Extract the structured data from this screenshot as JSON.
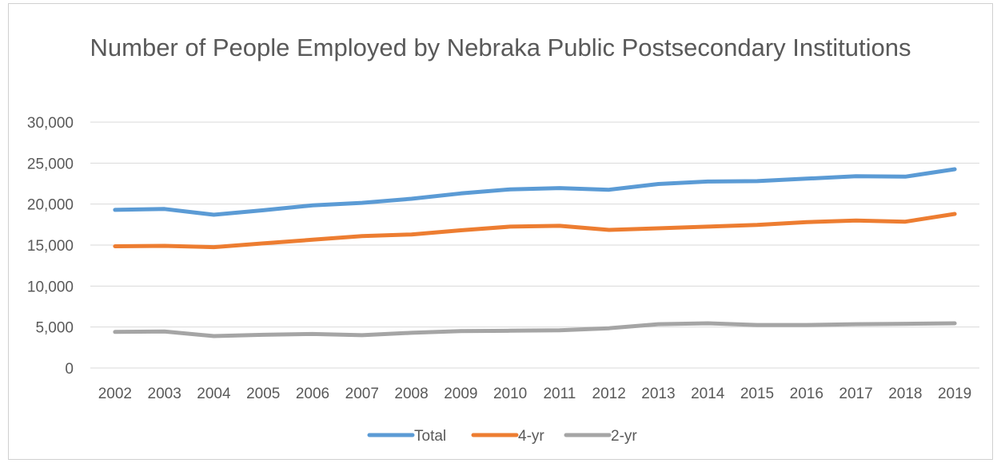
{
  "chart_data": {
    "type": "line",
    "title": "Number of People Employed by Nebraka Public Postsecondary Institutions",
    "xlabel": "",
    "ylabel": "",
    "categories": [
      "2002",
      "2003",
      "2004",
      "2005",
      "2006",
      "2007",
      "2008",
      "2009",
      "2010",
      "2011",
      "2012",
      "2013",
      "2014",
      "2015",
      "2016",
      "2017",
      "2018",
      "2019"
    ],
    "ylim": [
      0,
      30000
    ],
    "yticks": [
      0,
      5000,
      10000,
      15000,
      20000,
      25000,
      30000
    ],
    "ytick_labels": [
      "0",
      "5,000",
      "10,000",
      "15,000",
      "20,000",
      "25,000",
      "30,000"
    ],
    "grid": true,
    "legend_position": "bottom",
    "series": [
      {
        "name": "Total",
        "color": "#5b9bd5",
        "values": [
          19300,
          19400,
          18700,
          19250,
          19850,
          20150,
          20650,
          21300,
          21800,
          21950,
          21750,
          22450,
          22750,
          22800,
          23100,
          23400,
          23350,
          24250
        ]
      },
      {
        "name": "4-yr",
        "color": "#ed7d31",
        "values": [
          14850,
          14900,
          14750,
          15200,
          15650,
          16100,
          16300,
          16800,
          17250,
          17350,
          16850,
          17050,
          17250,
          17450,
          17800,
          18000,
          17850,
          18800
        ]
      },
      {
        "name": "2-yr",
        "color": "#a5a5a5",
        "values": [
          4400,
          4450,
          3900,
          4050,
          4150,
          4000,
          4300,
          4500,
          4550,
          4600,
          4850,
          5350,
          5450,
          5250,
          5250,
          5350,
          5400,
          5450
        ]
      }
    ]
  }
}
